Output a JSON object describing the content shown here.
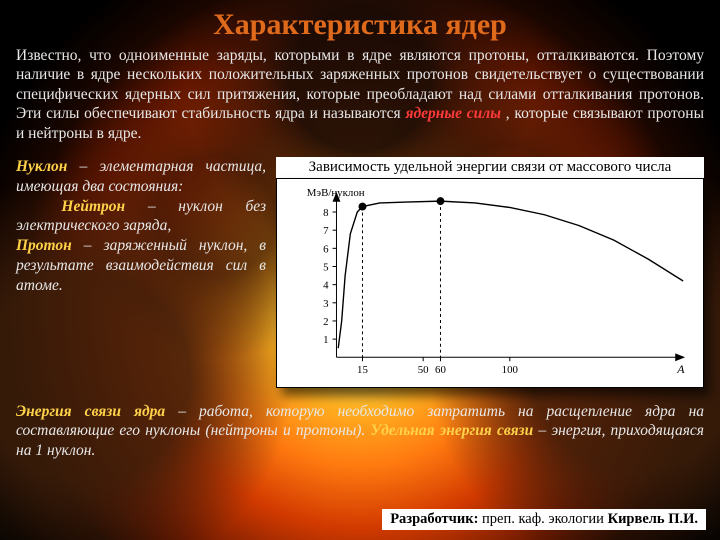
{
  "title": "Характеристика ядер",
  "intro_pre": "Известно, что одноименные заряды, которыми в ядре являются протоны, отталкиваются. Поэтому наличие в ядре нескольких положительных заряженных протонов свидетельствует о существовании специфических ядерных сил притяжения, которые преобладают над силами отталкивания протонов. Эти силы обеспечивают стабильность ядра и называются ",
  "intro_em": "ядерные силы",
  "intro_post": ", которые связывают протоны и нейтроны в ядре.",
  "def_nuclon_term": "Нуклон",
  "def_nuclon_rest": " – элементарная частица, имеющая два состояния:",
  "def_neutron_term": "Нейтрон",
  "def_neutron_rest": " – нуклон без электрического заряда,",
  "def_proton_term": "Протон",
  "def_proton_rest": " – заряженный нуклон, в результате взаимодействия сил в атоме.",
  "chart_caption": "Зависимость удельной энергии связи от массового числа",
  "p2_t1": "Энергия связи ядра",
  "p2_r1": " – работа, которую необходимо затратить на расщепление ядра на составляющие его нуклоны (нейтроны и протоны). ",
  "p2_t2": "Удельная энергия связи",
  "p2_r2": " – энергия, приходящаяся на 1 нуклон.",
  "author_label": "Разработчик: ",
  "author_role": "преп. каф. экологии   ",
  "author_name": "Кирвель П.И.",
  "chart": {
    "type": "line",
    "x_axis_label": "A",
    "y_axis_label": "МэВ/нуклон",
    "xlim": [
      0,
      200
    ],
    "ylim": [
      0,
      9
    ],
    "xticks": [
      15,
      50,
      60,
      100
    ],
    "yticks": [
      1,
      2,
      3,
      4,
      5,
      6,
      7,
      8
    ],
    "line_color": "#000000",
    "line_width": 1.4,
    "marker_points_x": [
      15,
      60
    ],
    "marker_style": "circle_filled",
    "marker_size": 4,
    "background": "#ffffff",
    "tick_color": "#000000",
    "curve": [
      [
        1,
        0.5
      ],
      [
        3,
        2.0
      ],
      [
        5,
        4.5
      ],
      [
        8,
        6.8
      ],
      [
        12,
        8.0
      ],
      [
        15,
        8.3
      ],
      [
        25,
        8.5
      ],
      [
        40,
        8.55
      ],
      [
        60,
        8.6
      ],
      [
        80,
        8.5
      ],
      [
        100,
        8.25
      ],
      [
        120,
        7.85
      ],
      [
        140,
        7.25
      ],
      [
        160,
        6.45
      ],
      [
        180,
        5.4
      ],
      [
        200,
        4.2
      ]
    ]
  }
}
